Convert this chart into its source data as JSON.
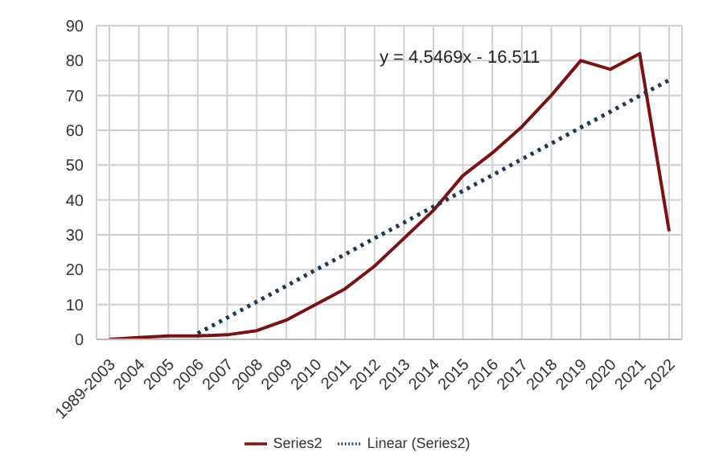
{
  "chart_data": {
    "type": "line",
    "categories": [
      "1989-2003",
      "2004",
      "2005",
      "2006",
      "2007",
      "2008",
      "2009",
      "2010",
      "2011",
      "2012",
      "2013",
      "2014",
      "2015",
      "2016",
      "2017",
      "2018",
      "2019",
      "2020",
      "2021",
      "2022"
    ],
    "series": [
      {
        "name": "Series2",
        "color": "#7b1212",
        "values": [
          0,
          0.5,
          1,
          1,
          1.3,
          2.5,
          5.5,
          10,
          14.5,
          21,
          29,
          37,
          47,
          53.5,
          61,
          70,
          80,
          77.5,
          82,
          31
        ],
        "line_style": "solid"
      },
      {
        "name": "Linear (Series2)",
        "color": "#1f3850",
        "values": [
          null,
          null,
          null,
          1.7,
          6.2,
          10.8,
          15.3,
          19.9,
          24.4,
          29,
          33.5,
          38.1,
          42.6,
          47.1,
          51.7,
          56.2,
          60.8,
          65.3,
          69.9,
          74.4
        ],
        "line_style": "dotted"
      }
    ],
    "ylim": [
      0,
      90
    ],
    "yticks": [
      0,
      10,
      20,
      30,
      40,
      50,
      60,
      70,
      80,
      90
    ],
    "grid": true,
    "legend": "bottom",
    "marker": "none",
    "annotations": [
      "y = 4.5469x - 16.511"
    ]
  }
}
